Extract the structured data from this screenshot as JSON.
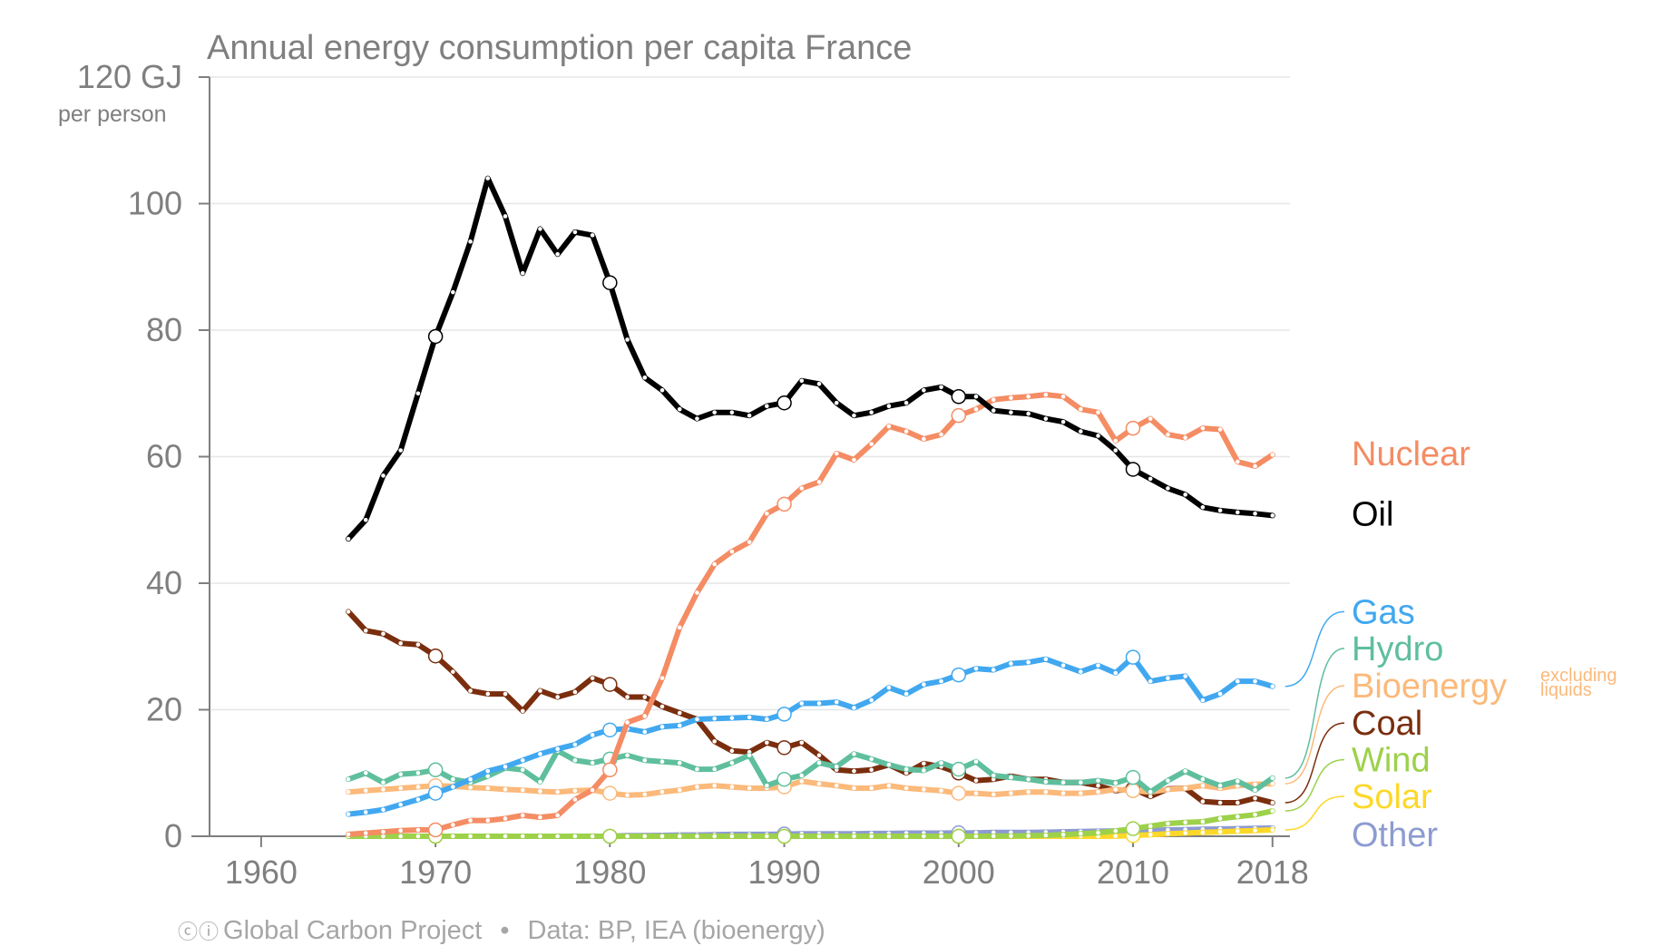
{
  "chart_data": {
    "type": "line",
    "title": "Annual energy consumption per capita France",
    "y_unit_top": "120 GJ",
    "y_unit_sub": "per person",
    "source": "Global Carbon Project",
    "source_data": "Data: BP, IEA (bioenergy)",
    "bioenergy_note": [
      "excluding",
      "liquids"
    ],
    "xlim": [
      1956,
      2019
    ],
    "ylim": [
      0,
      120
    ],
    "x_ticks": [
      1960,
      1970,
      1980,
      1990,
      2000,
      2010,
      2018
    ],
    "y_ticks": [
      0,
      20,
      40,
      60,
      80,
      100
    ],
    "y_tick_labels": [
      "0",
      "20",
      "40",
      "60",
      "80",
      "100"
    ],
    "grid": true,
    "legend_placement": "right",
    "x": [
      1965,
      1966,
      1967,
      1968,
      1969,
      1970,
      1971,
      1972,
      1973,
      1974,
      1975,
      1976,
      1977,
      1978,
      1979,
      1980,
      1981,
      1982,
      1983,
      1984,
      1985,
      1986,
      1987,
      1988,
      1989,
      1990,
      1991,
      1992,
      1993,
      1994,
      1995,
      1996,
      1997,
      1998,
      1999,
      2000,
      2001,
      2002,
      2003,
      2004,
      2005,
      2006,
      2007,
      2008,
      2009,
      2010,
      2011,
      2012,
      2013,
      2014,
      2015,
      2016,
      2017,
      2018
    ],
    "series": [
      {
        "name": "Oil",
        "color": "#000000",
        "values": [
          47,
          50,
          57,
          61,
          70,
          79,
          86,
          94,
          104,
          98,
          89,
          96,
          92,
          95.5,
          95,
          87.5,
          78.5,
          72.5,
          70.5,
          67.5,
          66,
          67,
          67,
          66.5,
          68,
          68.5,
          72,
          71.5,
          68.5,
          66.5,
          67,
          68,
          68.5,
          70.5,
          71,
          69.5,
          69.5,
          67.3,
          67,
          66.8,
          66,
          65.5,
          64,
          63.3,
          61,
          58,
          56.5,
          55,
          54,
          52,
          51.5,
          51.2,
          51,
          50.7
        ]
      },
      {
        "name": "Nuclear",
        "color": "#f48c64",
        "values": [
          0.3,
          0.5,
          0.7,
          0.9,
          1,
          1,
          1.8,
          2.5,
          2.5,
          2.8,
          3.3,
          3,
          3.3,
          5.8,
          7.3,
          10.5,
          18,
          19,
          25,
          33,
          38.5,
          43,
          45,
          46.5,
          51,
          52.5,
          55,
          56,
          60.5,
          59.5,
          62,
          64.8,
          64,
          62.8,
          63.5,
          66.5,
          67.5,
          69,
          69.3,
          69.5,
          69.8,
          69.5,
          67.5,
          67,
          62.5,
          64.5,
          66,
          63.5,
          63,
          64.5,
          64.3,
          59.2,
          58.5,
          60.3
        ]
      },
      {
        "name": "Gas",
        "color": "#41a8f0",
        "values": [
          3.5,
          3.8,
          4.2,
          5,
          5.8,
          6.8,
          7.8,
          9,
          10.3,
          11,
          12,
          13,
          13.8,
          14.5,
          16,
          16.8,
          17,
          16.5,
          17.3,
          17.5,
          18.5,
          18.6,
          18.7,
          18.8,
          18.5,
          19.3,
          21,
          21,
          21.2,
          20.3,
          21.5,
          23.5,
          22.5,
          24,
          24.5,
          25.5,
          26.5,
          26.3,
          27.3,
          27.5,
          28,
          27,
          26,
          27,
          25.8,
          28.3,
          24.5,
          25,
          25.3,
          21.5,
          22.5,
          24.5,
          24.5,
          23.7
        ]
      },
      {
        "name": "Hydro",
        "color": "#5fbf9d",
        "values": [
          9,
          10,
          8.5,
          9.8,
          10,
          10.5,
          9,
          8.5,
          9.5,
          10.8,
          10.5,
          8.6,
          13.5,
          12,
          11.6,
          12.2,
          12.8,
          12,
          11.8,
          11.6,
          10.6,
          10.6,
          11.6,
          12.8,
          8,
          9,
          9.6,
          11.6,
          11,
          13,
          12.2,
          11.3,
          10.6,
          10.4,
          11.6,
          10.6,
          11.8,
          9.6,
          9.3,
          9,
          8.6,
          8.5,
          8.5,
          8.8,
          8.4,
          9.3,
          7,
          8.8,
          10.3,
          9,
          8,
          8.7,
          7.3,
          9.2
        ]
      },
      {
        "name": "Bioenergy",
        "color": "#fbb97a",
        "values": [
          7,
          7.2,
          7.4,
          7.6,
          7.8,
          8,
          7.9,
          7.7,
          7.6,
          7.4,
          7.3,
          7.1,
          7,
          7.2,
          7.3,
          6.8,
          6.5,
          6.6,
          7,
          7.3,
          7.8,
          8,
          7.8,
          7.6,
          7.6,
          7.8,
          8.7,
          8.3,
          8,
          7.6,
          7.6,
          8,
          7.6,
          7.4,
          7.2,
          6.8,
          6.8,
          6.6,
          6.8,
          7,
          7,
          6.8,
          6.8,
          7,
          7.4,
          7.2,
          7,
          7.4,
          7.6,
          8,
          7.6,
          8,
          8.2,
          8.3
        ]
      },
      {
        "name": "Coal",
        "color": "#7a2e0e",
        "values": [
          35.5,
          32.5,
          32,
          30.5,
          30.3,
          28.5,
          26,
          23,
          22.5,
          22.5,
          19.8,
          23,
          22,
          22.8,
          25,
          24,
          22,
          22,
          20.5,
          19.5,
          18.5,
          15,
          13.5,
          13.3,
          14.8,
          14,
          14.8,
          12.8,
          10.5,
          10.3,
          10.5,
          11.3,
          10,
          11.5,
          11,
          10,
          8.8,
          9,
          9.5,
          9,
          9,
          8.5,
          8.5,
          8,
          7.2,
          7.5,
          6.3,
          7.5,
          7.6,
          5.5,
          5.3,
          5.3,
          6,
          5.3
        ]
      },
      {
        "name": "Wind",
        "color": "#9dd14a",
        "values": [
          0,
          0,
          0,
          0,
          0,
          0,
          0,
          0,
          0,
          0,
          0,
          0,
          0,
          0,
          0,
          0,
          0,
          0,
          0,
          0,
          0,
          0,
          0,
          0,
          0,
          0,
          0,
          0,
          0,
          0,
          0,
          0,
          0,
          0,
          0,
          0,
          0,
          0.02,
          0.05,
          0.08,
          0.15,
          0.25,
          0.4,
          0.55,
          0.85,
          1.2,
          1.6,
          2,
          2.2,
          2.3,
          2.8,
          3.1,
          3.4,
          4
        ]
      },
      {
        "name": "Solar",
        "color": "#fdd828",
        "values": [
          0,
          0,
          0,
          0,
          0,
          0,
          0,
          0,
          0,
          0,
          0,
          0,
          0,
          0,
          0,
          0,
          0,
          0,
          0,
          0,
          0,
          0,
          0,
          0,
          0,
          0,
          0,
          0,
          0,
          0,
          0,
          0,
          0,
          0,
          0,
          0,
          0,
          0,
          0,
          0,
          0,
          0,
          0,
          0,
          0.02,
          0.1,
          0.25,
          0.4,
          0.5,
          0.6,
          0.7,
          0.8,
          0.9,
          1
        ]
      },
      {
        "name": "Other",
        "color": "#8d9bd1",
        "values": [
          0,
          0,
          0,
          0,
          0,
          0,
          0,
          0,
          0,
          0,
          0,
          0,
          0,
          0,
          0,
          0,
          0.1,
          0.1,
          0.15,
          0.2,
          0.2,
          0.25,
          0.3,
          0.3,
          0.3,
          0.35,
          0.4,
          0.4,
          0.4,
          0.4,
          0.45,
          0.45,
          0.5,
          0.5,
          0.5,
          0.55,
          0.55,
          0.6,
          0.6,
          0.6,
          0.65,
          0.7,
          0.75,
          0.8,
          0.85,
          0.9,
          0.95,
          1,
          1.05,
          1.1,
          1.15,
          1.2,
          1.25,
          1.3
        ]
      }
    ],
    "label_order": [
      "Nuclear",
      "Oil",
      "Gas",
      "Hydro",
      "Bioenergy",
      "Coal",
      "Wind",
      "Solar",
      "Other"
    ],
    "label_values": {
      "Nuclear": 60.5,
      "Oil": 51,
      "Gas": 35.5,
      "Hydro": 29.7,
      "Bioenergy": 23.8,
      "Coal": 17.9,
      "Wind": 12.1,
      "Solar": 6.3,
      "Other": 0.3
    }
  }
}
